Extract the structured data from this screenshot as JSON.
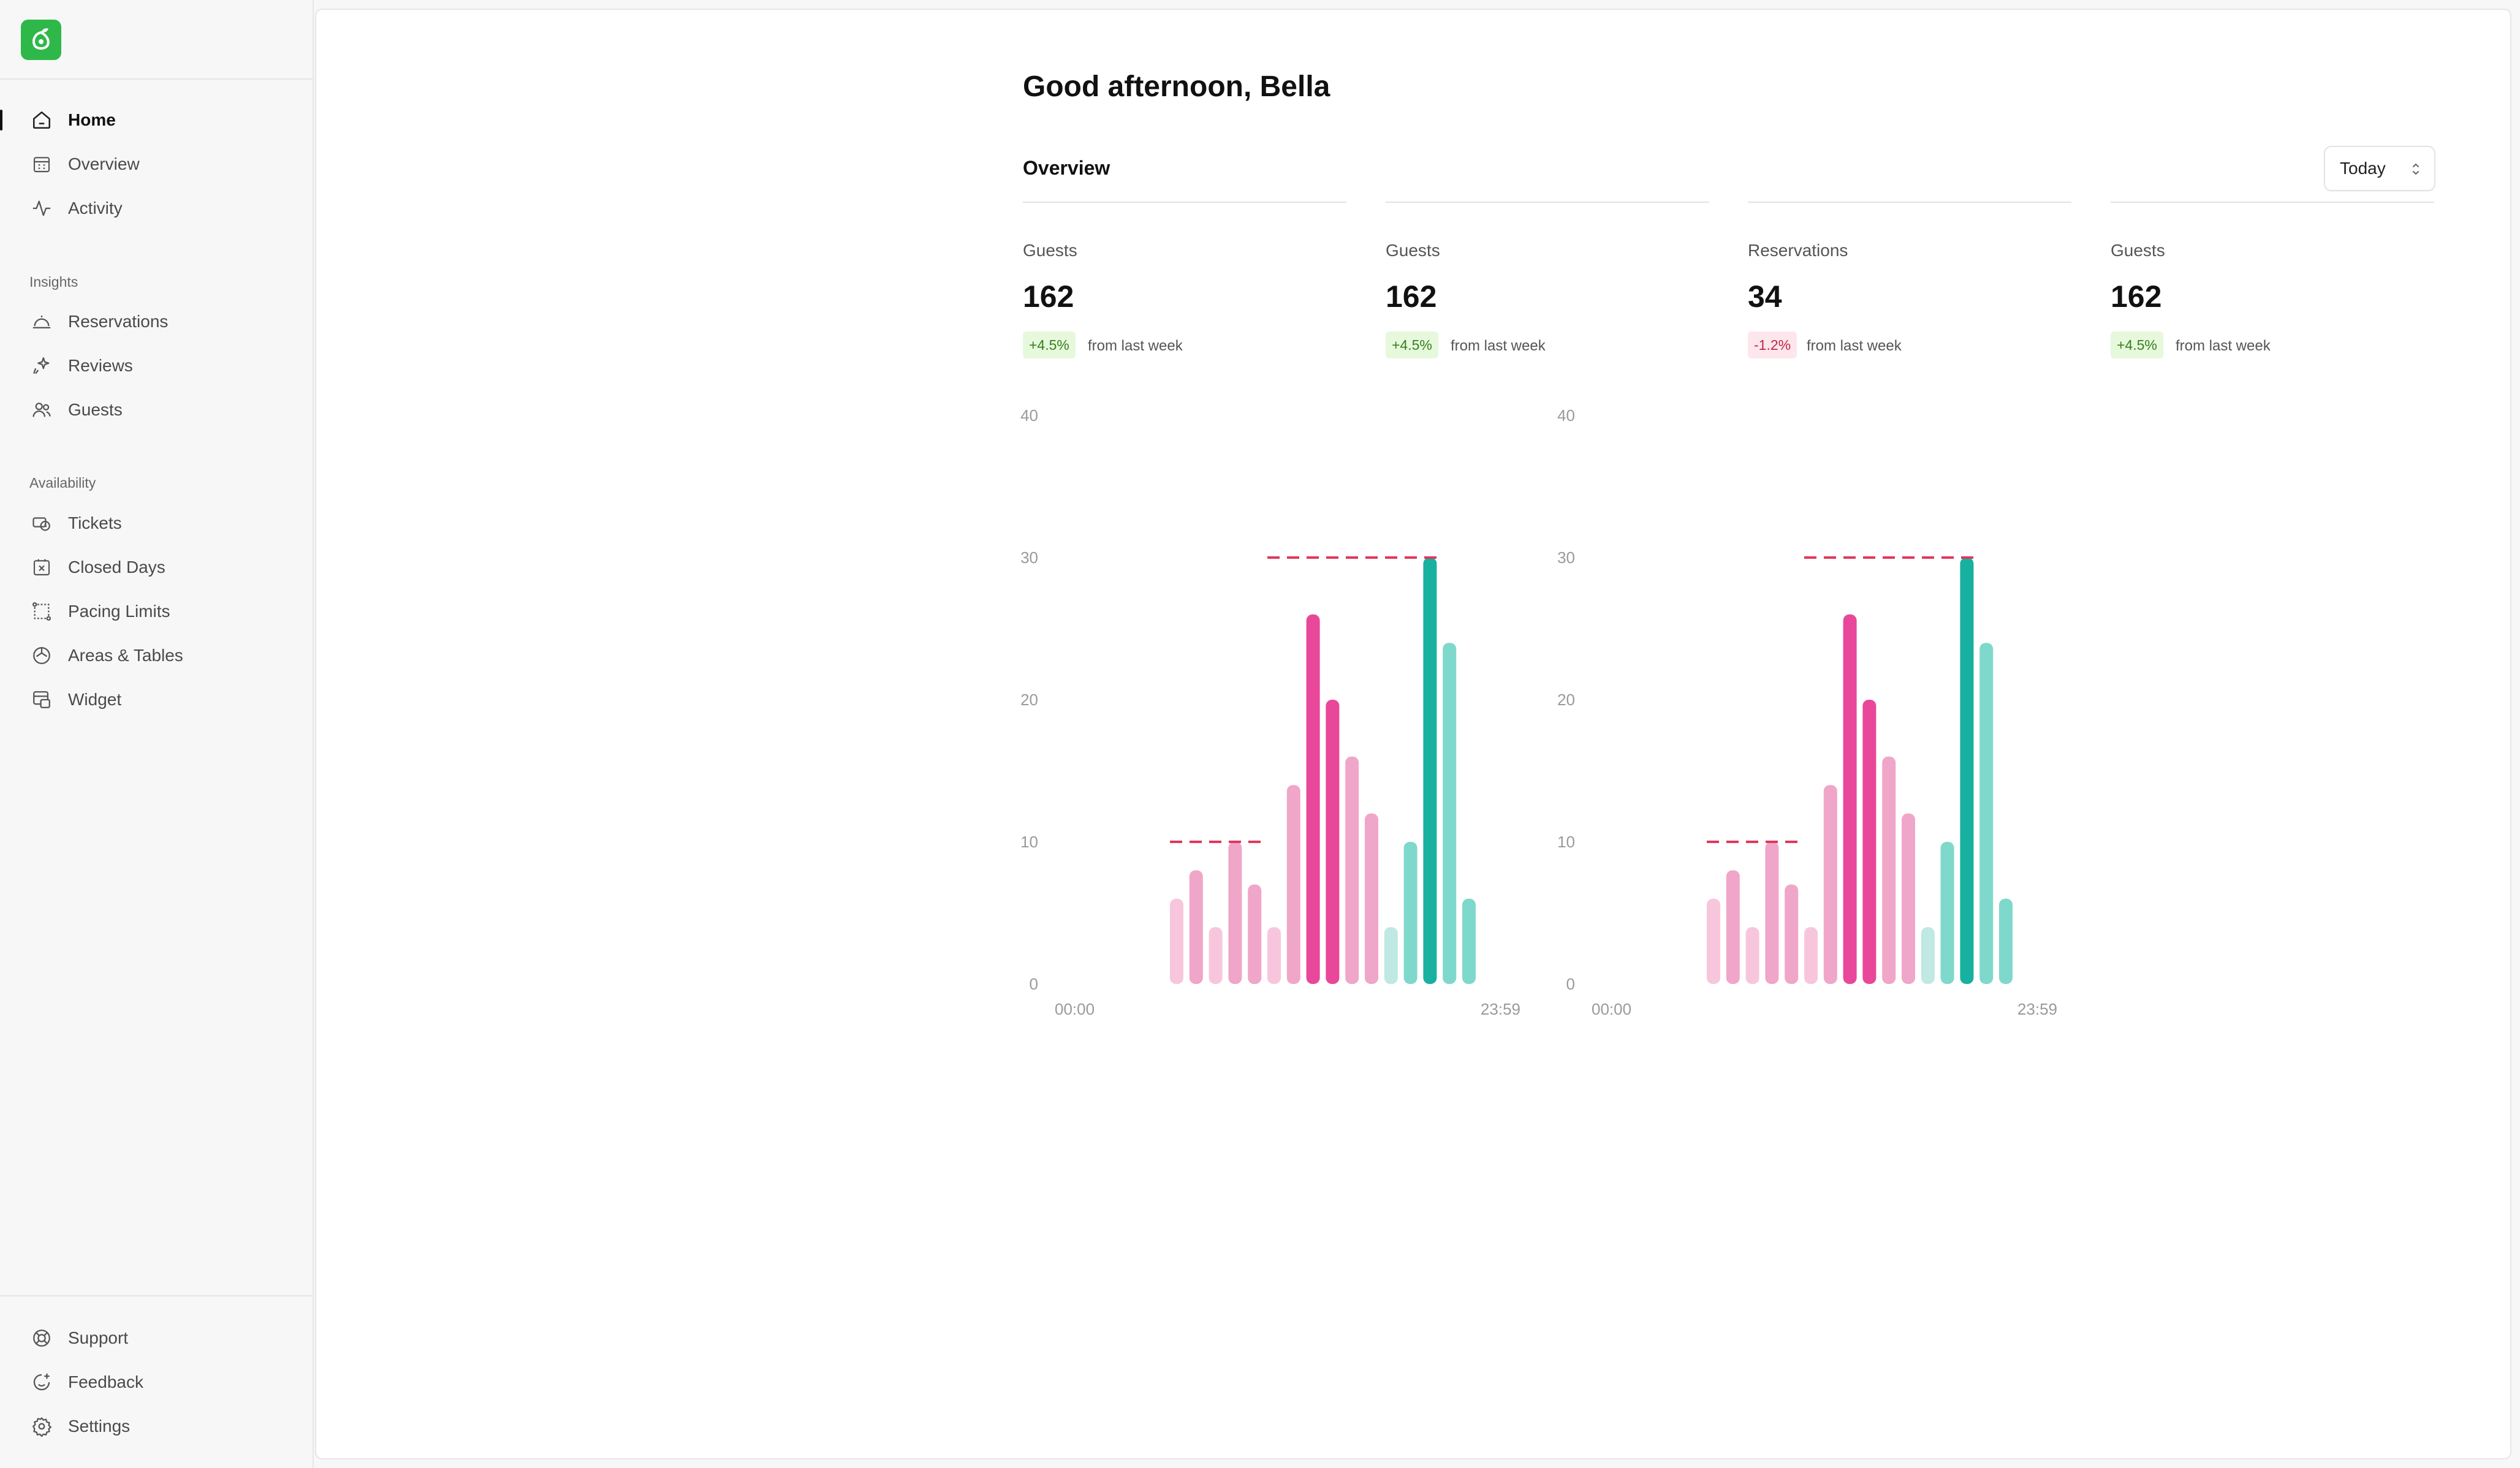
{
  "sidebar": {
    "nav": [
      {
        "label": "Home",
        "icon": "home-icon",
        "active": true
      },
      {
        "label": "Overview",
        "icon": "calendar-grid-icon"
      },
      {
        "label": "Activity",
        "icon": "activity-pulse-icon"
      }
    ],
    "insights_label": "Insights",
    "insights": [
      {
        "label": "Reservations",
        "icon": "cloche-icon"
      },
      {
        "label": "Reviews",
        "icon": "sparkle-icon"
      },
      {
        "label": "Guests",
        "icon": "users-icon"
      }
    ],
    "availability_label": "Availability",
    "availability": [
      {
        "label": "Tickets",
        "icon": "ticket-icon"
      },
      {
        "label": "Closed Days",
        "icon": "calendar-x-icon"
      },
      {
        "label": "Pacing Limits",
        "icon": "pacing-icon"
      },
      {
        "label": "Areas & Tables",
        "icon": "areas-icon"
      },
      {
        "label": "Widget",
        "icon": "widget-icon"
      }
    ],
    "footer": [
      {
        "label": "Support",
        "icon": "lifebuoy-icon"
      },
      {
        "label": "Feedback",
        "icon": "smile-plus-icon"
      },
      {
        "label": "Settings",
        "icon": "gear-icon"
      }
    ]
  },
  "header": {
    "greeting": "Good afternoon, Bella"
  },
  "overview": {
    "title": "Overview",
    "period": "Today",
    "metrics": [
      {
        "label": "Guests",
        "value": "162",
        "change": "+4.5%",
        "direction": "up",
        "note": "from last week"
      },
      {
        "label": "Guests",
        "value": "162",
        "change": "+4.5%",
        "direction": "up",
        "note": "from last week"
      },
      {
        "label": "Reservations",
        "value": "34",
        "change": "-1.2%",
        "direction": "down",
        "note": "from last week"
      },
      {
        "label": "Guests",
        "value": "162",
        "change": "+4.5%",
        "direction": "up",
        "note": "from last week"
      }
    ]
  },
  "colors": {
    "accent_green": "#2fb84a",
    "pink_light": "#f7c6dd",
    "pink_mid": "#f0a6c8",
    "pink_dark": "#e9479a",
    "teal_light": "#bfe9e2",
    "teal_mid": "#7fd8cc",
    "teal_dark": "#18b09f",
    "threshold_line": "#e0385c"
  },
  "chart_data": [
    {
      "type": "bar",
      "x_start_label": "00:00",
      "x_end_label": "23:59",
      "yticks": [
        0,
        10,
        20,
        30,
        40
      ],
      "ylim": [
        0,
        40
      ],
      "grid": false,
      "values": [
        6,
        8,
        4,
        10,
        7,
        4,
        14,
        26,
        20,
        16,
        12,
        4,
        10,
        30,
        24,
        6
      ],
      "shades": [
        "pink_light",
        "pink_mid",
        "pink_light",
        "pink_mid",
        "pink_mid",
        "pink_light",
        "pink_mid",
        "pink_dark",
        "pink_dark",
        "pink_mid",
        "pink_mid",
        "teal_light",
        "teal_mid",
        "teal_dark",
        "teal_mid",
        "teal_mid"
      ],
      "thresholds": [
        {
          "value": 10,
          "from_bar": 0,
          "to_bar": 4
        },
        {
          "value": 30,
          "from_bar": 5,
          "to_bar": 13
        }
      ]
    },
    {
      "type": "bar",
      "x_start_label": "00:00",
      "x_end_label": "23:59",
      "yticks": [
        0,
        10,
        20,
        30,
        40
      ],
      "ylim": [
        0,
        40
      ],
      "grid": false,
      "values": [
        6,
        8,
        4,
        10,
        7,
        4,
        14,
        26,
        20,
        16,
        12,
        4,
        10,
        30,
        24,
        6
      ],
      "shades": [
        "pink_light",
        "pink_mid",
        "pink_light",
        "pink_mid",
        "pink_mid",
        "pink_light",
        "pink_mid",
        "pink_dark",
        "pink_dark",
        "pink_mid",
        "pink_mid",
        "teal_light",
        "teal_mid",
        "teal_dark",
        "teal_mid",
        "teal_mid"
      ],
      "thresholds": [
        {
          "value": 10,
          "from_bar": 0,
          "to_bar": 4
        },
        {
          "value": 30,
          "from_bar": 5,
          "to_bar": 13
        }
      ]
    }
  ]
}
